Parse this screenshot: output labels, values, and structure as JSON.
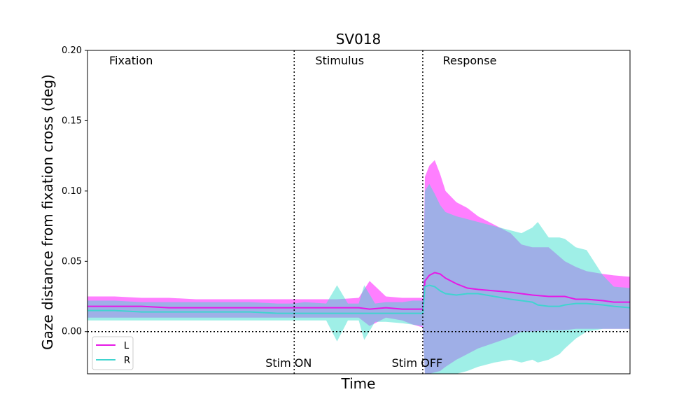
{
  "chart_data": {
    "type": "line",
    "title": "SV018",
    "xlabel": "Time",
    "ylabel": "Gaze distance from fixation cross (deg)",
    "ylim": [
      -0.03,
      0.2
    ],
    "yticks": [
      0.0,
      0.05,
      0.1,
      0.15,
      0.2
    ],
    "ytick_labels": [
      "0.00",
      "0.05",
      "0.10",
      "0.15",
      "0.20"
    ],
    "xlim": [
      0,
      1
    ],
    "grid": false,
    "legend_position": "lower-left",
    "phases": [
      {
        "label": "Fixation",
        "x": 0.04
      },
      {
        "label": "Stimulus",
        "x": 0.42
      },
      {
        "label": "Response",
        "x": 0.655
      }
    ],
    "events": [
      {
        "label": "Stim ON",
        "x": 0.381
      },
      {
        "label": "Stim OFF",
        "x": 0.618
      }
    ],
    "reference_line_y": 0.0,
    "series": [
      {
        "name": "L",
        "color": "#e619e6",
        "band_color": "#ff00ff",
        "x": [
          0,
          0.05,
          0.1,
          0.15,
          0.2,
          0.25,
          0.3,
          0.35,
          0.381,
          0.42,
          0.46,
          0.5,
          0.52,
          0.55,
          0.58,
          0.6,
          0.618,
          0.622,
          0.63,
          0.64,
          0.65,
          0.66,
          0.68,
          0.7,
          0.72,
          0.75,
          0.78,
          0.8,
          0.82,
          0.85,
          0.88,
          0.9,
          0.92,
          0.95,
          0.97,
          1.0
        ],
        "mean": [
          0.018,
          0.018,
          0.018,
          0.017,
          0.017,
          0.017,
          0.017,
          0.017,
          0.017,
          0.017,
          0.017,
          0.017,
          0.016,
          0.017,
          0.016,
          0.016,
          0.016,
          0.036,
          0.04,
          0.042,
          0.041,
          0.038,
          0.034,
          0.031,
          0.03,
          0.029,
          0.028,
          0.027,
          0.026,
          0.025,
          0.025,
          0.023,
          0.023,
          0.022,
          0.021,
          0.021
        ],
        "upper": [
          0.025,
          0.025,
          0.024,
          0.024,
          0.023,
          0.023,
          0.023,
          0.023,
          0.023,
          0.023,
          0.023,
          0.024,
          0.036,
          0.025,
          0.024,
          0.024,
          0.024,
          0.11,
          0.118,
          0.122,
          0.112,
          0.1,
          0.092,
          0.088,
          0.082,
          0.076,
          0.07,
          0.062,
          0.06,
          0.06,
          0.05,
          0.046,
          0.043,
          0.041,
          0.04,
          0.039
        ],
        "lower": [
          0.01,
          0.01,
          0.01,
          0.01,
          0.01,
          0.01,
          0.01,
          0.01,
          0.01,
          0.01,
          0.01,
          0.01,
          0.004,
          0.01,
          0.008,
          0.005,
          0.003,
          -0.03,
          -0.03,
          -0.029,
          -0.028,
          -0.025,
          -0.02,
          -0.016,
          -0.012,
          -0.008,
          -0.004,
          0.0,
          0.0,
          0.001,
          0.001,
          0.002,
          0.002,
          0.002,
          0.002,
          0.002
        ]
      },
      {
        "name": "R",
        "color": "#40d4cf",
        "band_color": "#40e0d0",
        "x": [
          0,
          0.05,
          0.1,
          0.15,
          0.2,
          0.25,
          0.3,
          0.35,
          0.381,
          0.4,
          0.44,
          0.46,
          0.48,
          0.5,
          0.51,
          0.53,
          0.55,
          0.58,
          0.6,
          0.618,
          0.622,
          0.63,
          0.64,
          0.65,
          0.66,
          0.68,
          0.7,
          0.72,
          0.75,
          0.78,
          0.8,
          0.82,
          0.83,
          0.85,
          0.87,
          0.88,
          0.9,
          0.92,
          0.95,
          0.97,
          1.0
        ],
        "mean": [
          0.015,
          0.015,
          0.014,
          0.014,
          0.014,
          0.014,
          0.014,
          0.013,
          0.013,
          0.013,
          0.013,
          0.013,
          0.013,
          0.013,
          0.013,
          0.013,
          0.013,
          0.013,
          0.013,
          0.013,
          0.032,
          0.033,
          0.032,
          0.029,
          0.027,
          0.026,
          0.027,
          0.027,
          0.025,
          0.023,
          0.022,
          0.021,
          0.019,
          0.018,
          0.018,
          0.019,
          0.02,
          0.02,
          0.019,
          0.018,
          0.017
        ],
        "upper": [
          0.022,
          0.022,
          0.021,
          0.021,
          0.021,
          0.021,
          0.021,
          0.02,
          0.02,
          0.021,
          0.02,
          0.033,
          0.02,
          0.02,
          0.033,
          0.02,
          0.021,
          0.021,
          0.022,
          0.022,
          0.1,
          0.105,
          0.098,
          0.09,
          0.085,
          0.082,
          0.08,
          0.078,
          0.075,
          0.072,
          0.07,
          0.074,
          0.078,
          0.067,
          0.067,
          0.066,
          0.06,
          0.058,
          0.04,
          0.032,
          0.031
        ],
        "lower": [
          0.008,
          0.008,
          0.008,
          0.008,
          0.008,
          0.008,
          0.008,
          0.008,
          0.008,
          0.008,
          0.008,
          -0.007,
          0.008,
          0.008,
          -0.006,
          0.007,
          0.007,
          0.006,
          0.005,
          0.004,
          -0.03,
          -0.03,
          -0.03,
          -0.03,
          -0.03,
          -0.03,
          -0.028,
          -0.025,
          -0.022,
          -0.02,
          -0.022,
          -0.02,
          -0.022,
          -0.02,
          -0.016,
          -0.012,
          -0.005,
          0.0,
          0.002,
          0.002,
          0.002
        ]
      }
    ]
  }
}
